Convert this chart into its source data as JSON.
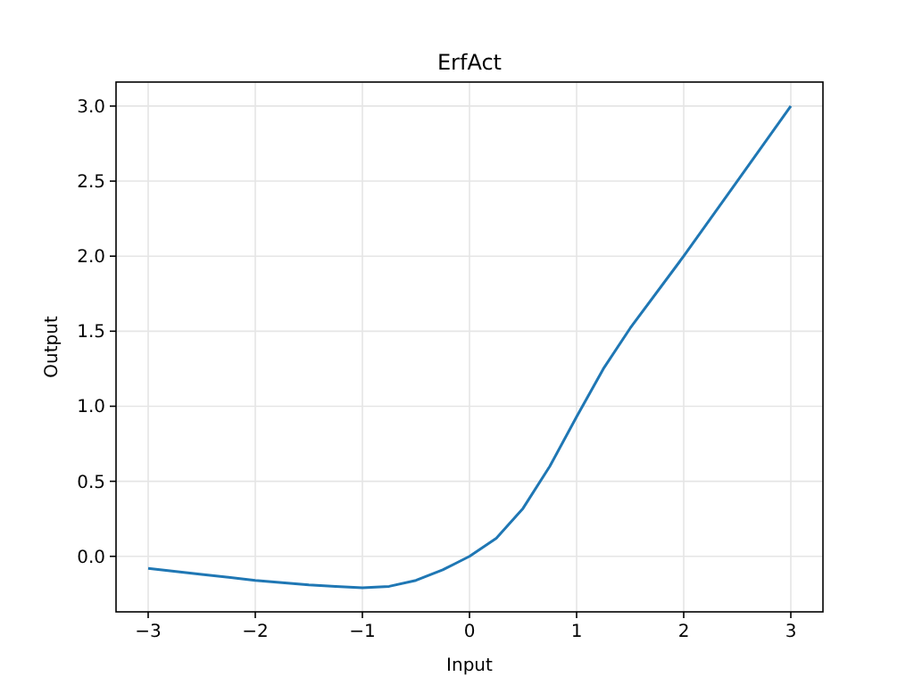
{
  "chart_data": {
    "type": "line",
    "title": "ErfAct",
    "xlabel": "Input",
    "ylabel": "Output",
    "x": [
      -3,
      -2.5,
      -2,
      -1.5,
      -1.25,
      -1,
      -0.75,
      -0.5,
      -0.25,
      0,
      0.25,
      0.5,
      0.75,
      1,
      1.25,
      1.5,
      2,
      2.5,
      3
    ],
    "series": [
      {
        "color": "#1f77b4",
        "values": [
          -0.08,
          -0.12,
          -0.16,
          -0.19,
          -0.2,
          -0.21,
          -0.2,
          -0.16,
          -0.09,
          0,
          0.12,
          0.32,
          0.6,
          0.93,
          1.25,
          1.52,
          2,
          2.5,
          3
        ]
      }
    ],
    "xlim": [
      -3.3,
      3.3
    ],
    "ylim": [
      -0.37,
      3.16
    ],
    "xticks": [
      {
        "value": -3,
        "label": "−3"
      },
      {
        "value": -2,
        "label": "−2"
      },
      {
        "value": -1,
        "label": "−1"
      },
      0,
      1,
      2,
      3
    ],
    "yticks": [
      {
        "value": 0,
        "label": "0.0"
      },
      {
        "value": 0.5,
        "label": "0.5"
      },
      {
        "value": 1,
        "label": "1.0"
      },
      {
        "value": 1.5,
        "label": "1.5"
      },
      {
        "value": 2,
        "label": "2.0"
      },
      {
        "value": 2.5,
        "label": "2.5"
      },
      {
        "value": 3,
        "label": "3.0"
      }
    ],
    "grid": true,
    "marker": "none",
    "line_style": "solid"
  }
}
